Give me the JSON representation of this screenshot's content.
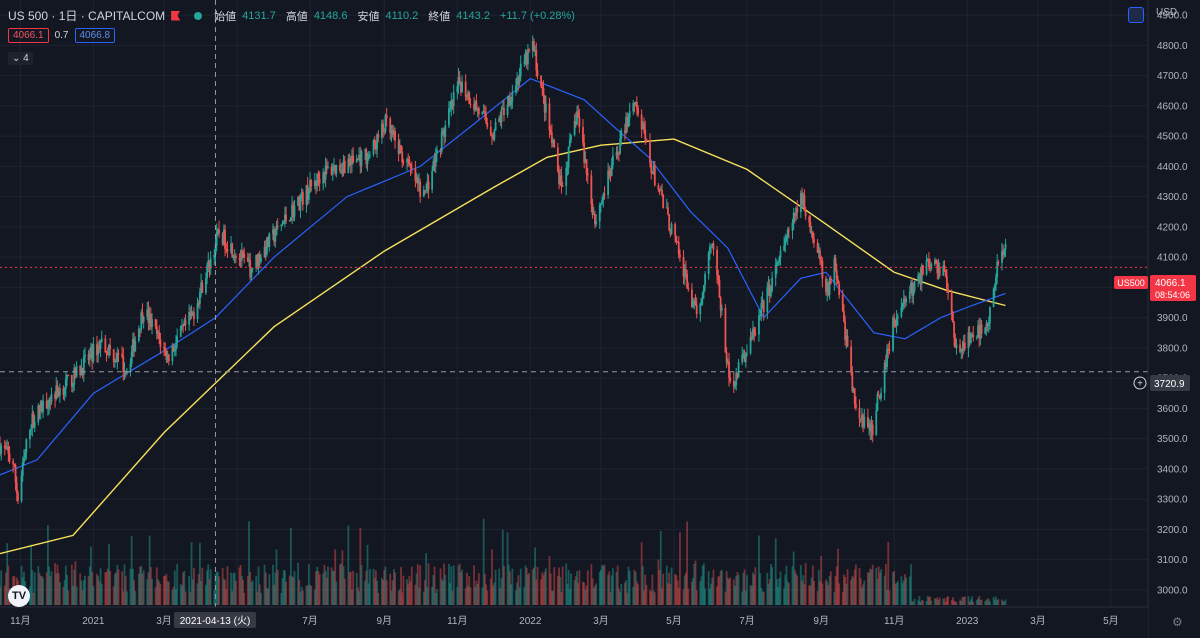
{
  "header": {
    "symbol": "US 500 · 1日 · CAPITALCOM",
    "ohlc": [
      {
        "label": "始値",
        "value": "4131.7"
      },
      {
        "label": "高値",
        "value": "4148.6"
      },
      {
        "label": "安値",
        "value": "4110.2"
      },
      {
        "label": "終値",
        "value": "4143.2"
      }
    ],
    "change": "+11.7 (+0.28%)",
    "sell_price": "4066.1",
    "spread": "0.7",
    "buy_price": "4066.8",
    "indicators_count": "4"
  },
  "price_scale": {
    "currency": "USD",
    "ticks": [
      "4900.0",
      "4800.0",
      "4700.0",
      "4600.0",
      "4500.0",
      "4400.0",
      "4300.0",
      "4200.0",
      "4100.0",
      "4000.0",
      "3900.0",
      "3800.0",
      "3700.0",
      "3600.0",
      "3500.0",
      "3400.0",
      "3300.0",
      "3200.0",
      "3100.0",
      "3000.0"
    ],
    "current_label": "US500",
    "current_price": "4066.1",
    "countdown": "08:54:06",
    "crosshair_price": "3720.9"
  },
  "time_scale": {
    "ticks": [
      "11月",
      "2021",
      "3月",
      "5月",
      "7月",
      "9月",
      "11月",
      "2022",
      "3月",
      "5月",
      "7月",
      "9月",
      "11月",
      "2023",
      "3月",
      "5月"
    ],
    "crosshair_date": "2021-04-13 (火)"
  },
  "colors": {
    "background": "#131722",
    "up": "#26a69a",
    "down": "#ef5350",
    "ma_fast": "#2962ff",
    "ma_slow": "#f7e15c",
    "current_price": "#f23645"
  },
  "chart_data": {
    "type": "candlestick",
    "symbol": "US 500",
    "interval": "1日",
    "ylim": [
      2950,
      4950
    ],
    "x_range": [
      "2020-10-15",
      "2023-06-01"
    ],
    "key_points": [
      {
        "date": "2020-10-15",
        "close": 3480
      },
      {
        "date": "2020-10-26",
        "close": 3420
      },
      {
        "date": "2020-10-30",
        "close": 3300
      },
      {
        "date": "2020-11-09",
        "close": 3550
      },
      {
        "date": "2020-11-24",
        "close": 3630
      },
      {
        "date": "2020-12-15",
        "close": 3700
      },
      {
        "date": "2021-01-08",
        "close": 3820
      },
      {
        "date": "2021-01-29",
        "close": 3730
      },
      {
        "date": "2021-02-12",
        "close": 3930
      },
      {
        "date": "2021-03-04",
        "close": 3770
      },
      {
        "date": "2021-03-25",
        "close": 3910
      },
      {
        "date": "2021-04-16",
        "close": 4180
      },
      {
        "date": "2021-05-12",
        "close": 4060
      },
      {
        "date": "2021-06-15",
        "close": 4250
      },
      {
        "date": "2021-07-12",
        "close": 4380
      },
      {
        "date": "2021-08-20",
        "close": 4440
      },
      {
        "date": "2021-09-02",
        "close": 4540
      },
      {
        "date": "2021-10-04",
        "close": 4300
      },
      {
        "date": "2021-11-03",
        "close": 4680
      },
      {
        "date": "2021-12-01",
        "close": 4510
      },
      {
        "date": "2022-01-03",
        "close": 4800
      },
      {
        "date": "2022-01-27",
        "close": 4320
      },
      {
        "date": "2022-02-09",
        "close": 4580
      },
      {
        "date": "2022-02-24",
        "close": 4220
      },
      {
        "date": "2022-03-29",
        "close": 4630
      },
      {
        "date": "2022-04-12",
        "close": 4400
      },
      {
        "date": "2022-05-02",
        "close": 4150
      },
      {
        "date": "2022-05-20",
        "close": 3900
      },
      {
        "date": "2022-06-02",
        "close": 4170
      },
      {
        "date": "2022-06-17",
        "close": 3670
      },
      {
        "date": "2022-07-05",
        "close": 3830
      },
      {
        "date": "2022-08-16",
        "close": 4300
      },
      {
        "date": "2022-09-07",
        "close": 3980
      },
      {
        "date": "2022-09-12",
        "close": 4110
      },
      {
        "date": "2022-09-30",
        "close": 3590
      },
      {
        "date": "2022-10-13",
        "close": 3520
      },
      {
        "date": "2022-10-31",
        "close": 3880
      },
      {
        "date": "2022-11-10",
        "close": 3960
      },
      {
        "date": "2022-11-30",
        "close": 4080
      },
      {
        "date": "2022-12-13",
        "close": 4060
      },
      {
        "date": "2022-12-22",
        "close": 3800
      },
      {
        "date": "2023-01-05",
        "close": 3830
      },
      {
        "date": "2023-01-19",
        "close": 3900
      },
      {
        "date": "2023-01-26",
        "close": 4060
      },
      {
        "date": "2023-02-02",
        "close": 4143.2
      }
    ],
    "ma_fast": [
      {
        "date": "2020-10-15",
        "value": 3380
      },
      {
        "date": "2020-11-15",
        "value": 3430
      },
      {
        "date": "2021-01-01",
        "value": 3650
      },
      {
        "date": "2021-03-01",
        "value": 3790
      },
      {
        "date": "2021-04-13",
        "value": 3900
      },
      {
        "date": "2021-06-01",
        "value": 4100
      },
      {
        "date": "2021-08-01",
        "value": 4300
      },
      {
        "date": "2021-10-01",
        "value": 4400
      },
      {
        "date": "2021-11-15",
        "value": 4540
      },
      {
        "date": "2022-01-01",
        "value": 4690
      },
      {
        "date": "2022-02-15",
        "value": 4620
      },
      {
        "date": "2022-03-15",
        "value": 4520
      },
      {
        "date": "2022-04-10",
        "value": 4430
      },
      {
        "date": "2022-05-15",
        "value": 4250
      },
      {
        "date": "2022-06-15",
        "value": 4130
      },
      {
        "date": "2022-07-15",
        "value": 3900
      },
      {
        "date": "2022-08-15",
        "value": 4030
      },
      {
        "date": "2022-09-05",
        "value": 4050
      },
      {
        "date": "2022-10-15",
        "value": 3850
      },
      {
        "date": "2022-11-10",
        "value": 3830
      },
      {
        "date": "2022-12-10",
        "value": 3900
      },
      {
        "date": "2023-01-05",
        "value": 3940
      },
      {
        "date": "2023-02-02",
        "value": 3980
      }
    ],
    "ma_slow": [
      {
        "date": "2020-10-15",
        "value": 3120
      },
      {
        "date": "2020-12-15",
        "value": 3180
      },
      {
        "date": "2021-03-01",
        "value": 3520
      },
      {
        "date": "2021-06-01",
        "value": 3870
      },
      {
        "date": "2021-09-01",
        "value": 4120
      },
      {
        "date": "2021-12-01",
        "value": 4330
      },
      {
        "date": "2022-01-15",
        "value": 4430
      },
      {
        "date": "2022-03-01",
        "value": 4470
      },
      {
        "date": "2022-05-01",
        "value": 4490
      },
      {
        "date": "2022-07-01",
        "value": 4390
      },
      {
        "date": "2022-09-01",
        "value": 4220
      },
      {
        "date": "2022-11-01",
        "value": 4050
      },
      {
        "date": "2022-12-15",
        "value": 3990
      },
      {
        "date": "2023-02-02",
        "value": 3940
      }
    ],
    "current_price": 4066.1,
    "crosshair": {
      "date": "2021-04-13",
      "price": 3720.9
    }
  }
}
